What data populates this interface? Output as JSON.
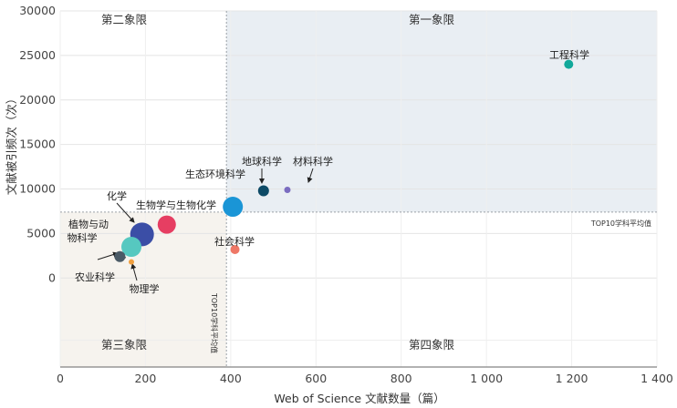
{
  "chart_data": {
    "type": "scatter",
    "title": "",
    "xlabel": "Web of Science 文献数量（篇）",
    "ylabel": "文献被引频次（次）",
    "xlim": [
      0,
      1400
    ],
    "ylim": [
      -10000,
      30000
    ],
    "x_ticks": [
      0,
      200,
      400,
      600,
      800,
      1000,
      1200,
      1400
    ],
    "x_tick_labels": [
      "0",
      "200",
      "400",
      "600",
      "800",
      "1 000",
      "1 200",
      "1 400"
    ],
    "y_ticks": [
      0,
      5000,
      10000,
      15000,
      20000,
      25000,
      30000
    ],
    "y_tick_labels": [
      "0",
      "5000",
      "10000",
      "15000",
      "20000",
      "25000",
      "30000"
    ],
    "averages": {
      "x": 390,
      "y": 7400
    },
    "avg_labels": {
      "x": "TOP10学科平均值",
      "y": "TOP10学科平均值"
    },
    "quadrant_labels": {
      "q1": "第一象限",
      "q2": "第二象限",
      "q3": "第三象限",
      "q4": "第四象限"
    },
    "quadrant_colors": {
      "q1": "#e9eef3",
      "q3": "#f6f3ee"
    },
    "points": [
      {
        "name": "工程科学",
        "x": 1193,
        "y": 24000,
        "size": 5,
        "color": "#11a89a"
      },
      {
        "name": "地球科学",
        "x": 477,
        "y": 9800,
        "size": 6,
        "color": "#0d4a66"
      },
      {
        "name": "材料科学",
        "x": 533,
        "y": 9900,
        "size": 3.5,
        "color": "#7a6cc0"
      },
      {
        "name": "生态环境科学",
        "x": 405,
        "y": 8000,
        "size": 11,
        "color": "#1a95d6"
      },
      {
        "name": "生物学与生物化学",
        "x": 250,
        "y": 6000,
        "size": 10,
        "color": "#e63e62"
      },
      {
        "name": "化学",
        "x": 192,
        "y": 4900,
        "size": 13,
        "color": "#3b4ea6"
      },
      {
        "name": "植物与动物科学",
        "x": 167,
        "y": 3500,
        "size": 11,
        "color": "#56c8c0"
      },
      {
        "name": "农业科学",
        "x": 140,
        "y": 2400,
        "size": 6,
        "color": "#4a5a66"
      },
      {
        "name": "物理学",
        "x": 167,
        "y": 1800,
        "size": 3,
        "color": "#f0a040"
      },
      {
        "name": "社会科学",
        "x": 410,
        "y": 3200,
        "size": 5,
        "color": "#ee7766"
      }
    ],
    "labels": [
      {
        "text": "工程科学"
      },
      {
        "text": "地球科学"
      },
      {
        "text": "材料科学"
      },
      {
        "text": "生态环境科学"
      },
      {
        "text": "生物学与生物化学"
      },
      {
        "text": "化学"
      },
      {
        "text": "植物与动"
      },
      {
        "text": "物科学"
      },
      {
        "text": "农业科学"
      },
      {
        "text": "物理学"
      },
      {
        "text": "社会科学"
      }
    ]
  }
}
